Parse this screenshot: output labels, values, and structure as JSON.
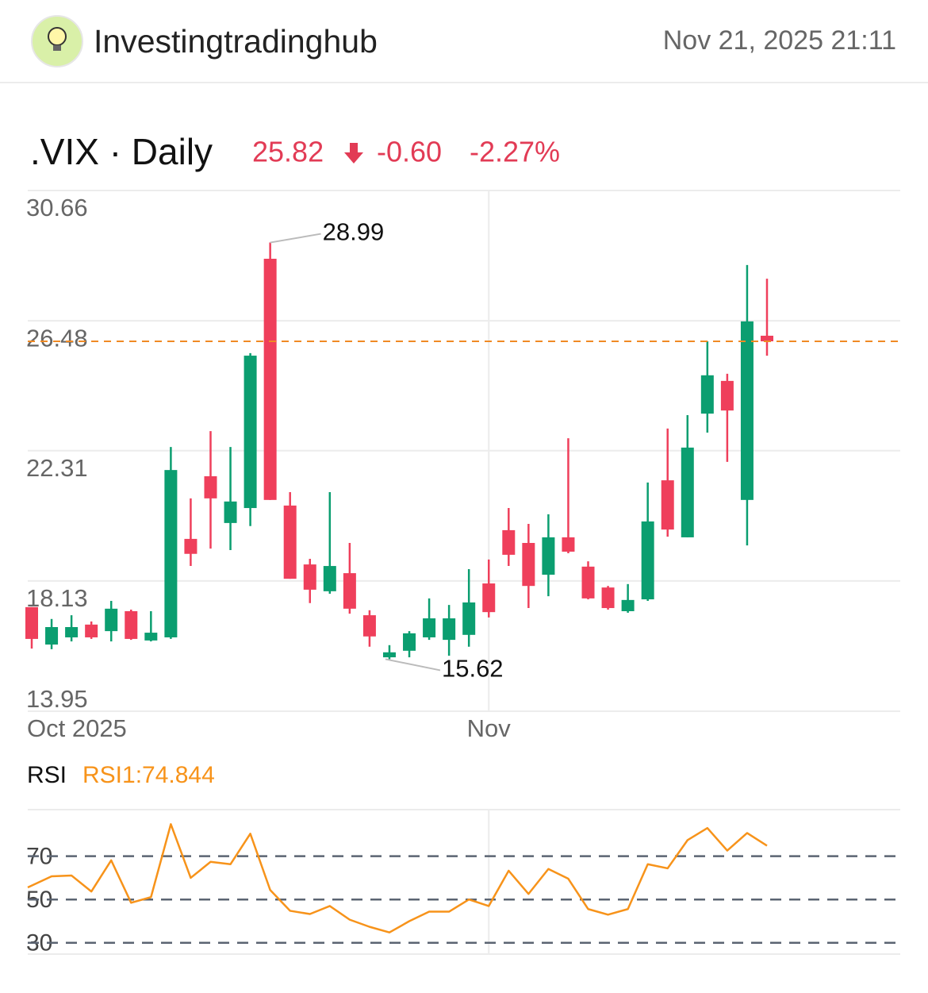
{
  "header": {
    "brand": "Investingtradinghub",
    "timestamp": "Nov 21, 2025 21:11"
  },
  "chart_data": [
    {
      "type": "candlestick",
      "title": ".VIX · Daily",
      "quote": {
        "price": "25.82",
        "change": "-0.60",
        "change_pct": "-2.27%"
      },
      "categories": [
        "Oct 2025",
        null,
        null,
        null,
        null,
        null,
        null,
        null,
        null,
        null,
        null,
        null,
        null,
        null,
        null,
        null,
        null,
        null,
        null,
        null,
        null,
        null,
        null,
        "Nov",
        null,
        null,
        null,
        null,
        null,
        null,
        null,
        null,
        null,
        null,
        null,
        null,
        null,
        null
      ],
      "open": [
        17.29,
        16.09,
        16.32,
        16.73,
        16.52,
        17.16,
        16.22,
        16.32,
        19.48,
        21.49,
        19.99,
        20.47,
        28.47,
        20.55,
        18.66,
        17.8,
        18.38,
        17.03,
        15.68,
        15.89,
        16.32,
        16.24,
        16.4,
        18.05,
        19.76,
        19.35,
        18.33,
        19.53,
        18.59,
        17.92,
        17.16,
        17.54,
        21.36,
        19.53,
        23.5,
        24.55,
        20.73,
        26.0
      ],
      "high": [
        17.29,
        16.91,
        17.03,
        16.83,
        17.49,
        17.21,
        17.16,
        22.43,
        20.78,
        22.94,
        22.43,
        25.44,
        28.99,
        20.98,
        18.84,
        20.98,
        19.35,
        17.19,
        16.07,
        16.52,
        17.57,
        17.36,
        18.51,
        18.82,
        20.47,
        19.96,
        20.27,
        22.71,
        18.76,
        17.97,
        18.03,
        21.29,
        23.02,
        23.45,
        25.82,
        24.78,
        28.27,
        27.83
      ],
      "low": [
        15.96,
        15.94,
        16.19,
        16.27,
        16.19,
        16.24,
        16.19,
        16.27,
        18.61,
        19.17,
        19.12,
        19.89,
        20.73,
        18.2,
        17.42,
        17.72,
        17.08,
        16.02,
        15.62,
        15.68,
        16.24,
        15.73,
        16.02,
        16.96,
        18.61,
        17.26,
        17.64,
        19.02,
        17.54,
        17.21,
        17.11,
        17.49,
        19.55,
        19.53,
        22.89,
        21.95,
        19.27,
        25.36
      ],
      "close": [
        16.27,
        16.65,
        16.65,
        16.32,
        17.24,
        16.27,
        16.47,
        21.69,
        19.0,
        20.78,
        20.68,
        25.36,
        20.73,
        18.2,
        17.85,
        18.61,
        17.24,
        16.35,
        15.84,
        16.45,
        16.93,
        16.93,
        17.44,
        17.13,
        18.97,
        17.97,
        19.53,
        19.07,
        17.57,
        17.26,
        17.52,
        20.04,
        19.78,
        22.41,
        24.73,
        23.6,
        26.46,
        25.82
      ],
      "up_color": "#0b9e70",
      "down_color": "#ef3f5b",
      "last_line_color": "#f08a24",
      "ylim": [
        13.95,
        30.66
      ],
      "yticks": [
        13.95,
        18.13,
        22.31,
        26.48,
        30.66
      ],
      "grid": true
    },
    {
      "type": "line",
      "title": "RSI",
      "series": [
        {
          "name": "RSI1:74.844",
          "color": "#f7931a",
          "values": [
            55.6,
            60.7,
            61.1,
            53.7,
            68.1,
            48.5,
            51.1,
            84.8,
            60.0,
            67.4,
            66.3,
            80.4,
            54.4,
            44.8,
            43.3,
            47.0,
            40.7,
            37.4,
            34.8,
            40.0,
            44.4,
            44.4,
            50.0,
            47.0,
            63.3,
            52.6,
            64.1,
            59.6,
            45.6,
            43.0,
            45.6,
            66.3,
            64.4,
            77.4,
            83.0,
            72.6,
            80.7,
            74.844
          ]
        }
      ],
      "ylim": [
        24.8,
        91.5
      ],
      "yticks": [
        30,
        50,
        70
      ],
      "grid": true
    }
  ]
}
